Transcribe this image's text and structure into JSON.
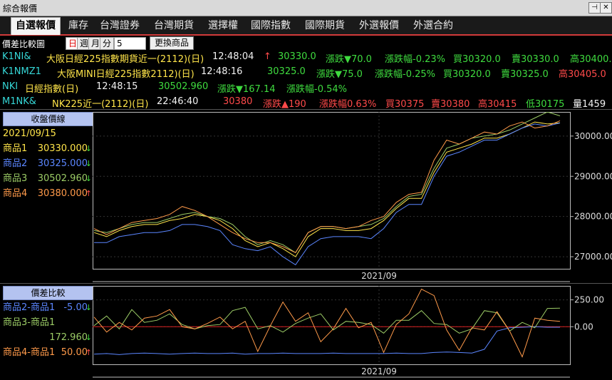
{
  "window": {
    "title": "綜合報價",
    "pin_icon": "pin-icon",
    "close_icon": "close-icon"
  },
  "tabs": [
    {
      "label": "自選報價",
      "active": true
    },
    {
      "label": "庫存"
    },
    {
      "label": "台灣證券"
    },
    {
      "label": "台灣期貨"
    },
    {
      "label": "選擇權"
    },
    {
      "label": "國際指數"
    },
    {
      "label": "國際期貨"
    },
    {
      "label": "外選報價"
    },
    {
      "label": "外選合約"
    }
  ],
  "toolbar": {
    "label": "價差比較圖",
    "periods": [
      "日",
      "週",
      "月",
      "分"
    ],
    "selected_period": "日",
    "count": "5",
    "change_button": "更換商品"
  },
  "quotes": [
    {
      "code": "K1NI&",
      "name": "大阪日經225指數期貨近一(2112)(日)",
      "time": "12:48:04",
      "arrow": "↑",
      "price": "30330.0",
      "chg": "漲跌▼70.0",
      "pct": "漲跌幅-0.23%",
      "bid": "買30320.0",
      "ask": "賣30330.0",
      "high": "高30400.0"
    },
    {
      "code": "K1NMZ1",
      "name": "大阪MINI日經225指數2112)(日)",
      "time": "12:48:16",
      "price": "30325.0",
      "chg": "漲跌▼75.0",
      "pct": "漲跌幅-0.25%",
      "bid": "買30320.0",
      "ask": "賣30325.0",
      "high": "高30405.0"
    },
    {
      "code": "NKI",
      "name": "日經指數(日)",
      "time": "12:48:15",
      "price": "30502.960",
      "chg": "漲跌▼167.14",
      "pct": "漲跌幅-0.54%"
    },
    {
      "code": "M1NK&",
      "name": "NK225近一(2112)(日)",
      "time": "22:46:40",
      "price": "30380",
      "chg": "漲跌▲190",
      "pct": "漲跌幅0.63%",
      "bid": "買30375",
      "ask": "賣30380",
      "high": "高30415",
      "low": "低30175",
      "vol": "量1459"
    }
  ],
  "close_panel": {
    "heading": "收盤價線",
    "date": "2021/09/15",
    "items": [
      {
        "label": "商品1",
        "value": "30330.000",
        "color": "#ffe54a",
        "arrow": "↓"
      },
      {
        "label": "商品2",
        "value": "30325.000",
        "color": "#5b86ff",
        "arrow": "↓"
      },
      {
        "label": "商品3",
        "value": "30502.960",
        "color": "#9ccc66",
        "arrow": "↓"
      },
      {
        "label": "商品4",
        "value": "30380.000",
        "color": "#ff9a4a",
        "arrow": "↑"
      }
    ],
    "x_label": "2021/09",
    "y_ticks": [
      "30000.00",
      "29000.00",
      "28000.00",
      "27000.00"
    ]
  },
  "spread_panel": {
    "heading": "價差比較",
    "items": [
      {
        "label": "商品2-商品1",
        "value": "-5.00",
        "color": "#5b86ff",
        "arrow": "↓"
      },
      {
        "label": "商品3-商品1",
        "value": "172.960",
        "color": "#9ccc66",
        "arrow": "↓"
      },
      {
        "label": "商品4-商品1",
        "value": "50.00",
        "color": "#ff9a4a",
        "arrow": "↑"
      }
    ],
    "x_label": "2021/09",
    "y_ticks": [
      "250.00",
      "0.00"
    ]
  },
  "chart_data": [
    {
      "type": "line",
      "ylim": [
        26700,
        30600
      ],
      "series": [
        {
          "name": "商品1",
          "color": "#ffe54a",
          "values": [
            27600,
            27500,
            27650,
            27750,
            27800,
            27800,
            27900,
            27950,
            28050,
            28000,
            27900,
            27700,
            27400,
            27250,
            27350,
            27200,
            27000,
            27500,
            27700,
            27700,
            27650,
            27650,
            27700,
            27900,
            28200,
            28450,
            28450,
            29100,
            29600,
            29700,
            29800,
            29950,
            29950,
            30050,
            30200,
            30350,
            30300,
            30330
          ]
        },
        {
          "name": "商品2",
          "color": "#5b86ff",
          "values": [
            27350,
            27350,
            27500,
            27550,
            27600,
            27600,
            27650,
            27800,
            27800,
            27750,
            27650,
            27300,
            27200,
            27150,
            27250,
            27000,
            26800,
            27250,
            27450,
            27500,
            27500,
            27500,
            27450,
            27700,
            28100,
            28300,
            28300,
            29000,
            29500,
            29600,
            29750,
            29900,
            29900,
            30050,
            30200,
            30300,
            30250,
            30325
          ]
        },
        {
          "name": "商品3",
          "color": "#9ccc66",
          "values": [
            27650,
            27600,
            27700,
            27800,
            27850,
            27850,
            27950,
            28050,
            28100,
            28000,
            27950,
            27800,
            27500,
            27300,
            27400,
            27300,
            27100,
            27600,
            27750,
            27750,
            27700,
            27750,
            27800,
            27950,
            28250,
            28500,
            28550,
            29200,
            29700,
            29800,
            29950,
            30000,
            30050,
            30150,
            30300,
            30450,
            30600,
            30503
          ]
        },
        {
          "name": "商品4",
          "color": "#ff9a4a",
          "values": [
            27700,
            27550,
            27700,
            27850,
            27900,
            27950,
            28050,
            28250,
            28150,
            28000,
            27800,
            27600,
            27450,
            27350,
            27350,
            27250,
            27100,
            27600,
            27750,
            27750,
            27700,
            27750,
            27900,
            28000,
            28350,
            28550,
            28600,
            29400,
            29900,
            29800,
            29950,
            30100,
            30050,
            30250,
            30350,
            30200,
            30250,
            30380
          ]
        }
      ]
    },
    {
      "type": "line",
      "ylim": [
        -350,
        380
      ],
      "series": [
        {
          "name": "商品2-商品1",
          "color": "#5b86ff",
          "values": [
            -255,
            -250,
            -260,
            -250,
            -245,
            -250,
            -255,
            -250,
            -245,
            -250,
            -250,
            -245,
            -255,
            -250,
            -250,
            -245,
            -250,
            -250,
            -250,
            -245,
            -250,
            -250,
            -250,
            -250,
            -245,
            -250,
            -250,
            -240,
            -235,
            -240,
            -245,
            -210,
            -40,
            -10,
            -5,
            0,
            -5,
            -5
          ]
        },
        {
          "name": "商品3-商品1",
          "color": "#9ccc66",
          "values": [
            10,
            100,
            -20,
            160,
            40,
            60,
            120,
            20,
            -20,
            10,
            20,
            150,
            180,
            -20,
            10,
            -50,
            30,
            80,
            120,
            -30,
            50,
            40,
            20,
            -60,
            60,
            60,
            150,
            30,
            20,
            -60,
            -20,
            150,
            130,
            -40,
            40,
            -10,
            170,
            173
          ]
        },
        {
          "name": "商品4-商品1",
          "color": "#ff9a4a",
          "values": [
            90,
            -50,
            40,
            -30,
            80,
            100,
            160,
            0,
            -20,
            30,
            90,
            -20,
            50,
            -230,
            10,
            230,
            50,
            130,
            -140,
            -20,
            170,
            -10,
            40,
            -240,
            20,
            120,
            350,
            290,
            -30,
            -220,
            -10,
            -30,
            140,
            -40,
            -280,
            80,
            60,
            50
          ]
        }
      ]
    }
  ]
}
